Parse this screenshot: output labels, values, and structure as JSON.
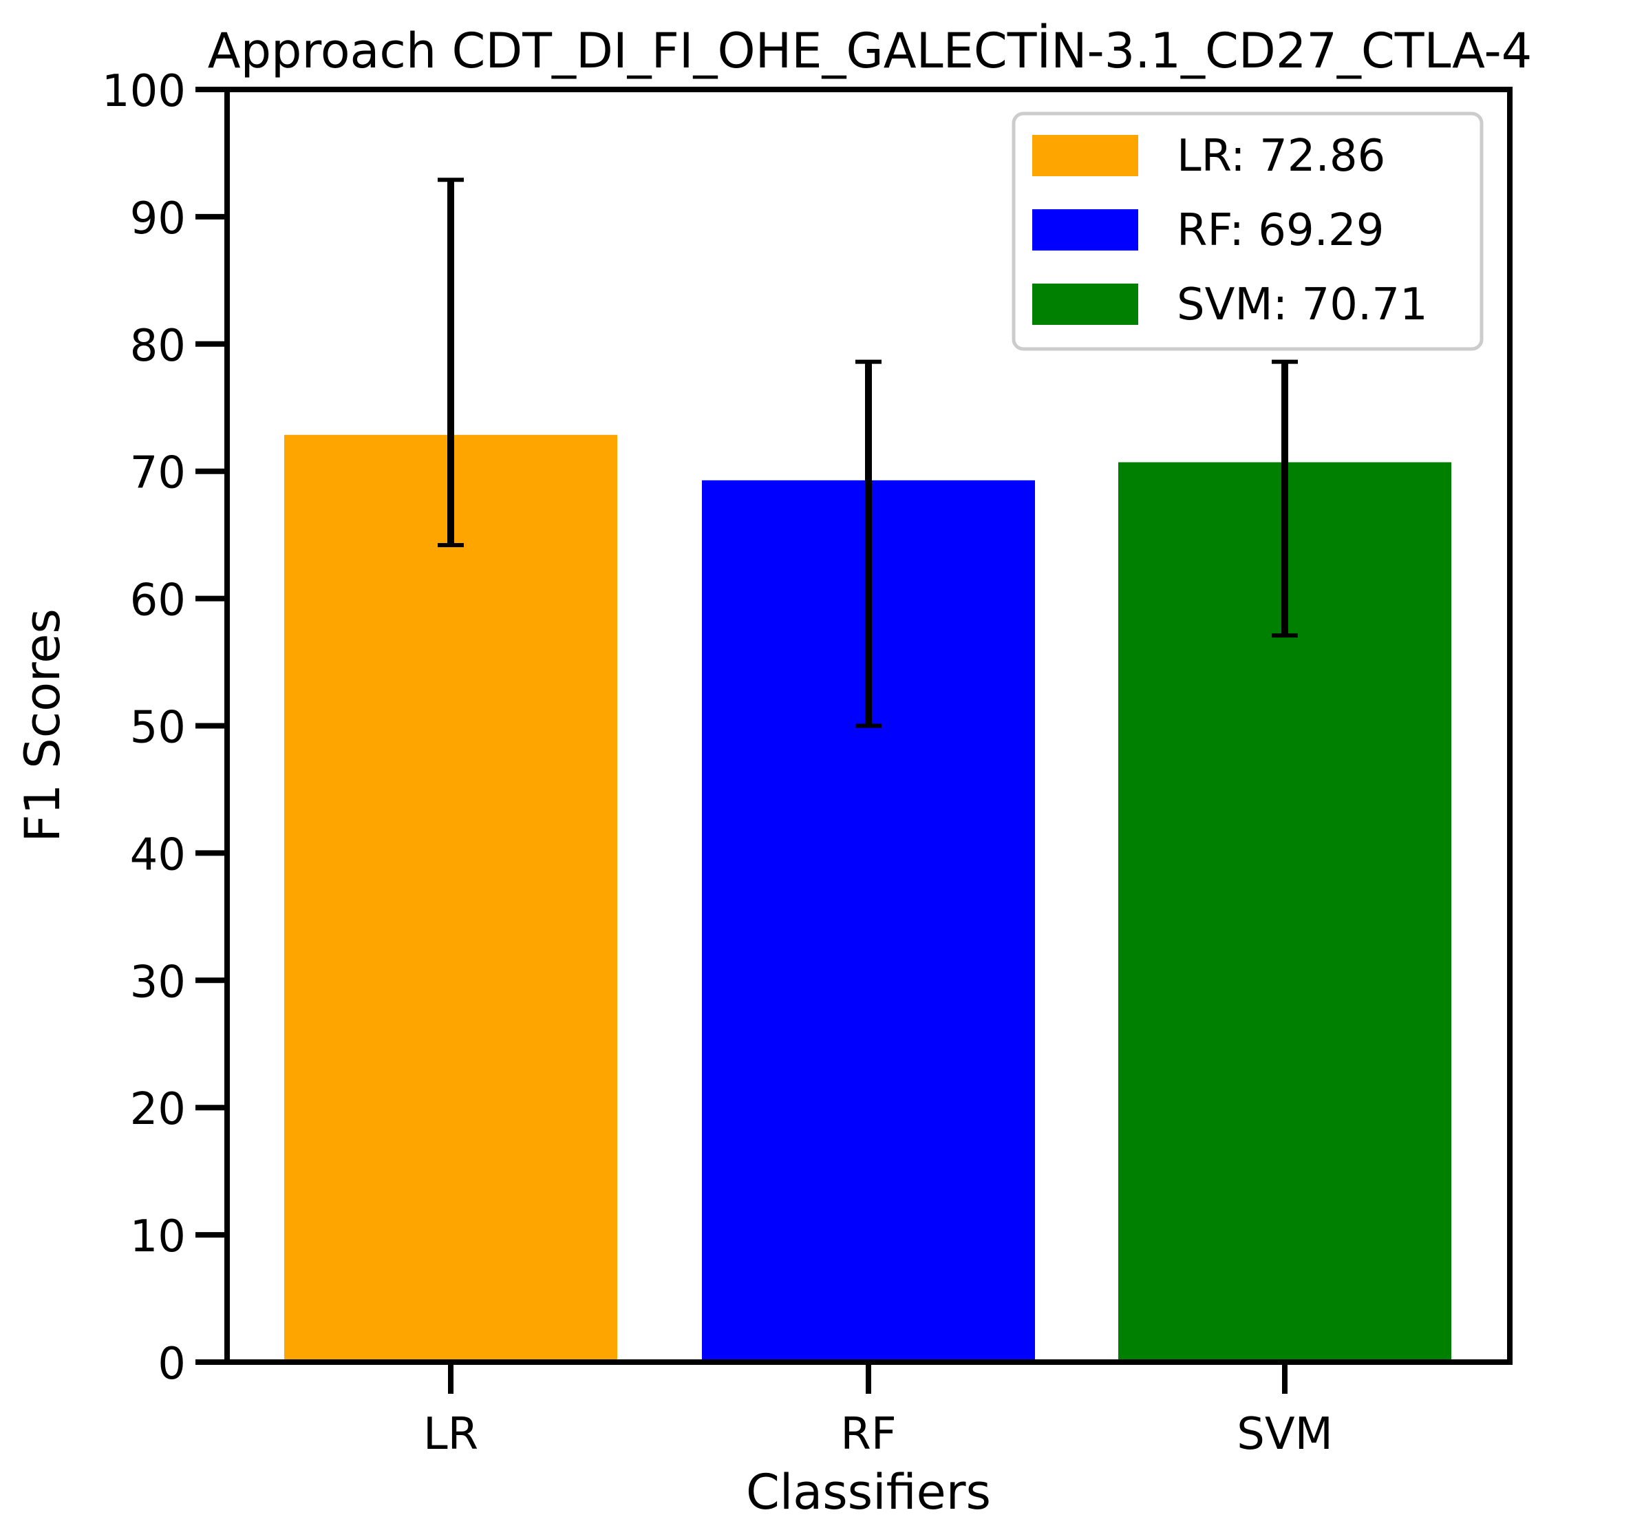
{
  "chart_data": {
    "type": "bar",
    "title": "Approach CDT_DI_FI_OHE_GALECTİN-3.1_CD27_CTLA-4",
    "xlabel": "Classifiers",
    "ylabel": "F1 Scores",
    "ylim": [
      0,
      100
    ],
    "yticks": [
      0,
      10,
      20,
      30,
      40,
      50,
      60,
      70,
      80,
      90,
      100
    ],
    "categories": [
      "LR",
      "RF",
      "SVM"
    ],
    "values": [
      72.86,
      69.29,
      70.71
    ],
    "error_low": [
      64.2,
      50.0,
      57.1
    ],
    "error_high": [
      92.9,
      78.6,
      78.6
    ],
    "colors": [
      "#ffa500",
      "#0000ff",
      "#008000"
    ],
    "grid": false,
    "legend_position": "top-right",
    "legend": [
      {
        "label": "LR: 72.86",
        "color": "#ffa500"
      },
      {
        "label": "RF: 69.29",
        "color": "#0000ff"
      },
      {
        "label": "SVM: 70.71",
        "color": "#008000"
      }
    ]
  }
}
